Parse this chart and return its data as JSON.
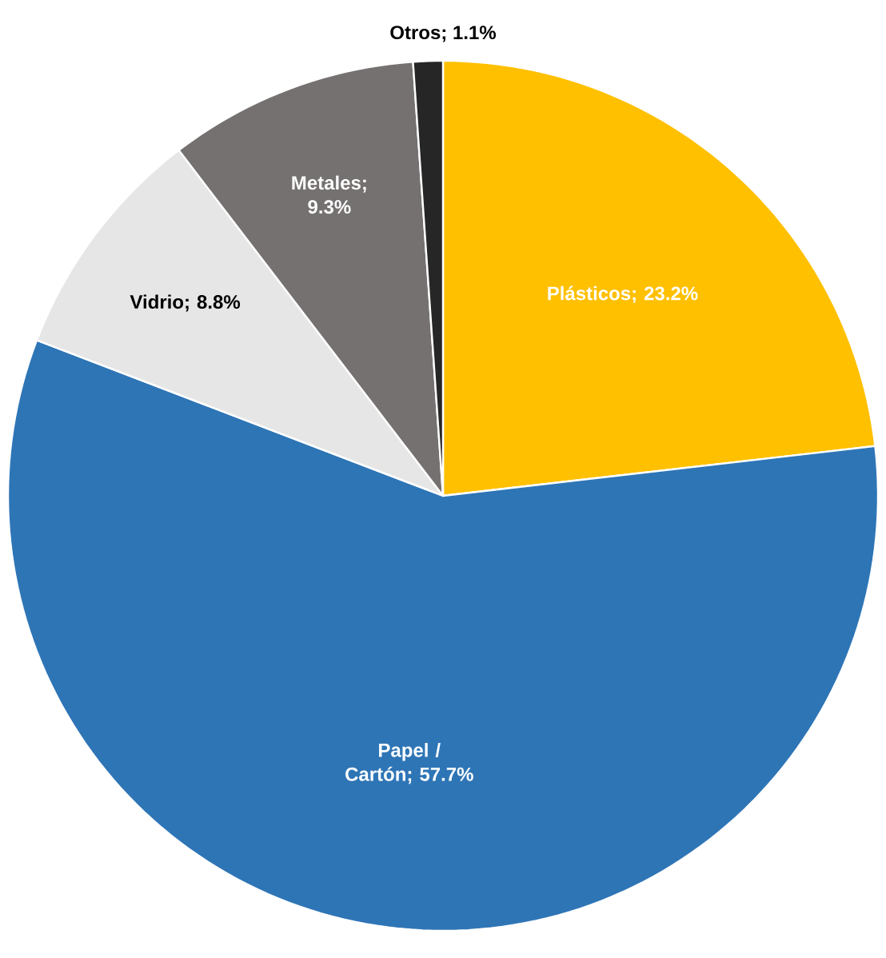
{
  "chart_data": {
    "type": "pie",
    "categories": [
      "Plásticos",
      "Papel / Cartón",
      "Vidrio",
      "Metales",
      "Otros"
    ],
    "values": [
      23.2,
      57.7,
      8.8,
      9.3,
      1.1
    ],
    "value_labels": [
      "; 23.2%",
      "; 57.7%",
      "; 8.8%",
      "; 9.3%",
      "; 1.1%"
    ],
    "colors": [
      "#ffc000",
      "#2e75b6",
      "#e7e6e6",
      "#767171",
      "#262626"
    ]
  }
}
